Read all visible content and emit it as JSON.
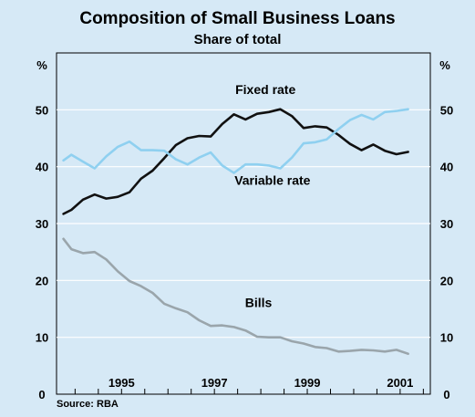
{
  "chart_data": {
    "type": "line",
    "title": "Composition of Small Business Loans",
    "subtitle": "Share of total",
    "ylabel_left": "%",
    "ylabel_right": "%",
    "ylim": [
      0,
      60
    ],
    "xlim": [
      1993.6,
      2001.65
    ],
    "yticks": [
      0,
      10,
      20,
      30,
      40,
      50
    ],
    "xticks": [
      1995,
      1997,
      1999,
      2001
    ],
    "grid": true,
    "source": "Source: RBA",
    "series": [
      {
        "name": "Fixed rate",
        "color": "#111111",
        "points": [
          [
            1993.75,
            31.7
          ],
          [
            1993.92,
            32.4
          ],
          [
            1994.17,
            34.2
          ],
          [
            1994.42,
            35.1
          ],
          [
            1994.67,
            34.4
          ],
          [
            1994.92,
            34.7
          ],
          [
            1995.17,
            35.5
          ],
          [
            1995.42,
            37.9
          ],
          [
            1995.67,
            39.3
          ],
          [
            1995.92,
            41.5
          ],
          [
            1996.17,
            43.8
          ],
          [
            1996.42,
            45.0
          ],
          [
            1996.67,
            45.4
          ],
          [
            1996.92,
            45.3
          ],
          [
            1997.17,
            47.5
          ],
          [
            1997.42,
            49.2
          ],
          [
            1997.67,
            48.3
          ],
          [
            1997.92,
            49.3
          ],
          [
            1998.17,
            49.6
          ],
          [
            1998.42,
            50.1
          ],
          [
            1998.67,
            48.9
          ],
          [
            1998.92,
            46.8
          ],
          [
            1999.17,
            47.1
          ],
          [
            1999.42,
            46.9
          ],
          [
            1999.67,
            45.6
          ],
          [
            1999.92,
            44.0
          ],
          [
            2000.17,
            42.9
          ],
          [
            2000.42,
            43.9
          ],
          [
            2000.67,
            42.8
          ],
          [
            2000.92,
            42.2
          ],
          [
            2001.17,
            42.6
          ]
        ],
        "label_x": 1998.1,
        "label_y": 52.8
      },
      {
        "name": "Variable rate",
        "color": "#8fd0f0",
        "points": [
          [
            1993.75,
            41.1
          ],
          [
            1993.92,
            42.1
          ],
          [
            1994.17,
            40.9
          ],
          [
            1994.42,
            39.7
          ],
          [
            1994.67,
            41.8
          ],
          [
            1994.92,
            43.5
          ],
          [
            1995.17,
            44.4
          ],
          [
            1995.42,
            42.9
          ],
          [
            1995.67,
            42.9
          ],
          [
            1995.92,
            42.8
          ],
          [
            1996.17,
            41.3
          ],
          [
            1996.42,
            40.4
          ],
          [
            1996.67,
            41.6
          ],
          [
            1996.92,
            42.5
          ],
          [
            1997.17,
            40.2
          ],
          [
            1997.42,
            38.9
          ],
          [
            1997.67,
            40.4
          ],
          [
            1997.92,
            40.4
          ],
          [
            1998.17,
            40.2
          ],
          [
            1998.42,
            39.7
          ],
          [
            1998.67,
            41.6
          ],
          [
            1998.92,
            44.1
          ],
          [
            1999.17,
            44.3
          ],
          [
            1999.42,
            44.8
          ],
          [
            1999.67,
            46.6
          ],
          [
            1999.92,
            48.2
          ],
          [
            2000.17,
            49.1
          ],
          [
            2000.42,
            48.3
          ],
          [
            2000.67,
            49.6
          ],
          [
            2000.92,
            49.8
          ],
          [
            2001.17,
            50.1
          ]
        ],
        "label_x": 1998.25,
        "label_y": 36.8
      },
      {
        "name": "Bills",
        "color": "#9aa5ab",
        "points": [
          [
            1993.75,
            27.3
          ],
          [
            1993.92,
            25.5
          ],
          [
            1994.17,
            24.8
          ],
          [
            1994.42,
            25.0
          ],
          [
            1994.67,
            23.7
          ],
          [
            1994.92,
            21.6
          ],
          [
            1995.17,
            19.9
          ],
          [
            1995.42,
            19.0
          ],
          [
            1995.67,
            17.8
          ],
          [
            1995.92,
            15.9
          ],
          [
            1996.17,
            15.1
          ],
          [
            1996.42,
            14.4
          ],
          [
            1996.67,
            13.0
          ],
          [
            1996.92,
            12.0
          ],
          [
            1997.17,
            12.1
          ],
          [
            1997.42,
            11.8
          ],
          [
            1997.67,
            11.2
          ],
          [
            1997.92,
            10.1
          ],
          [
            1998.17,
            10.0
          ],
          [
            1998.42,
            10.0
          ],
          [
            1998.67,
            9.3
          ],
          [
            1998.92,
            8.9
          ],
          [
            1999.17,
            8.3
          ],
          [
            1999.42,
            8.1
          ],
          [
            1999.67,
            7.5
          ],
          [
            1999.92,
            7.6
          ],
          [
            2000.17,
            7.8
          ],
          [
            2000.42,
            7.7
          ],
          [
            2000.67,
            7.5
          ],
          [
            2000.92,
            7.8
          ],
          [
            2001.17,
            7.1
          ]
        ],
        "label_x": 1997.95,
        "label_y": 15.3
      }
    ]
  }
}
